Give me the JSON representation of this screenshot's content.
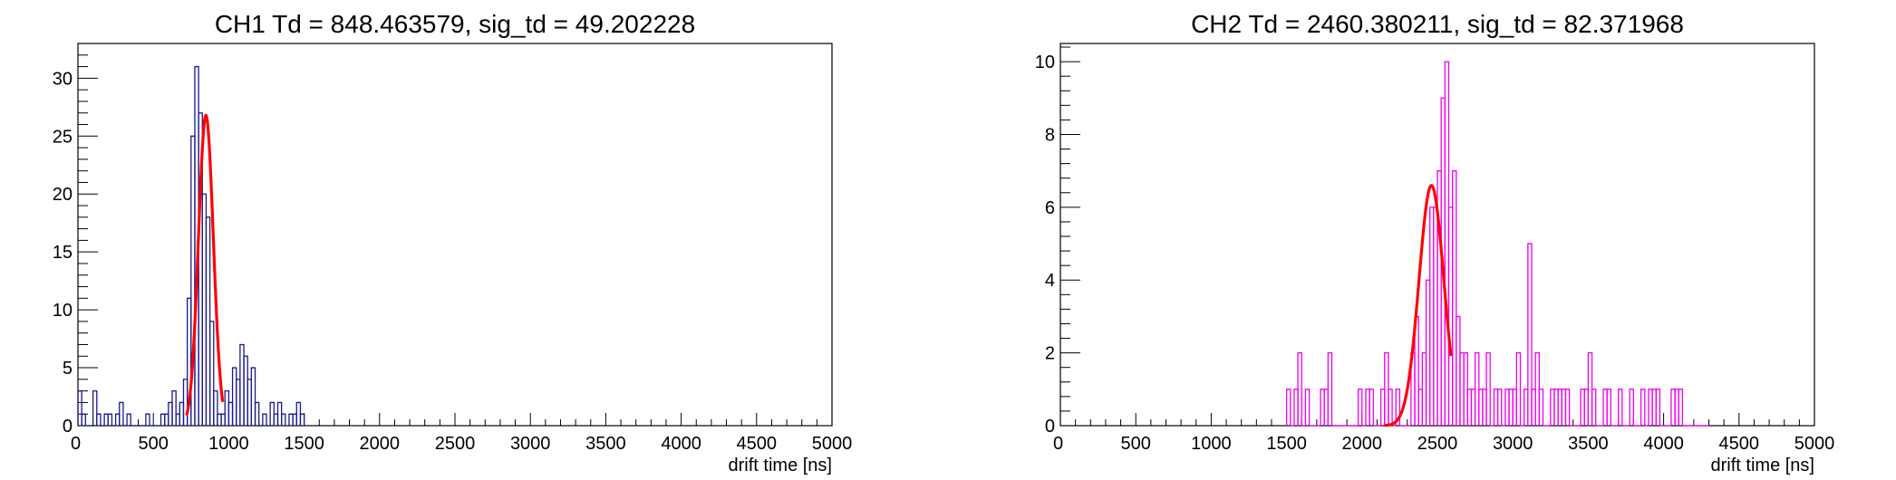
{
  "chart_data": [
    {
      "type": "bar",
      "title": "CH1 Td = 848.463579, sig_td = 49.202228",
      "xlabel": "drift time [ns]",
      "ylabel": "",
      "xlim": [
        0,
        5000
      ],
      "ylim": [
        0,
        33
      ],
      "xticks": [
        0,
        500,
        1000,
        1500,
        2000,
        2500,
        3000,
        3500,
        4000,
        4500,
        5000
      ],
      "yticks": [
        0,
        5,
        10,
        15,
        20,
        25,
        30
      ],
      "grid": false,
      "legend": "none",
      "hist_color": "#1a1a8c",
      "fit_color": "#ff0000",
      "histogram": {
        "bin_width": 25,
        "x_start": 0,
        "counts": [
          3,
          1,
          0,
          0,
          3,
          1,
          0,
          1,
          1,
          0,
          1,
          2,
          0,
          1,
          0,
          0,
          0,
          0,
          1,
          0,
          0,
          0,
          1,
          1,
          2,
          3,
          1,
          2,
          4,
          11,
          25,
          31,
          27,
          20,
          18,
          9,
          3,
          1,
          1,
          3,
          2,
          5,
          4,
          7,
          6,
          4,
          5,
          2,
          0,
          1,
          0,
          2,
          1,
          2,
          1,
          0,
          1,
          1,
          2,
          1
        ]
      },
      "fit": {
        "model": "gaussian",
        "amplitude": 26.8,
        "mean": 848.463579,
        "sigma": 49.202228,
        "x_range": [
          720,
          960
        ]
      }
    },
    {
      "type": "bar",
      "title": "CH2 Td = 2460.380211, sig_td = 82.371968",
      "xlabel": "drift time [ns]",
      "ylabel": "",
      "xlim": [
        0,
        5000
      ],
      "ylim": [
        0,
        10.5
      ],
      "xticks": [
        0,
        500,
        1000,
        1500,
        2000,
        2500,
        3000,
        3500,
        4000,
        4500,
        5000
      ],
      "yticks": [
        0,
        2,
        4,
        6,
        8,
        10
      ],
      "grid": false,
      "legend": "none",
      "hist_color": "#ee00ee",
      "fit_color": "#ff0000",
      "histogram": {
        "bin_width": 25,
        "x_start": 1500,
        "counts": [
          1,
          0,
          1,
          2,
          0,
          1,
          0,
          0,
          0,
          1,
          1,
          2,
          0,
          0,
          0,
          0,
          0,
          0,
          0,
          1,
          0,
          1,
          1,
          0,
          0,
          1,
          2,
          1,
          0,
          1,
          0,
          0,
          0,
          2,
          3,
          1,
          2,
          4,
          6,
          6,
          7,
          9,
          10,
          6,
          7,
          3,
          2,
          2,
          1,
          1,
          2,
          1,
          1,
          2,
          0,
          1,
          1,
          0,
          1,
          1,
          1,
          2,
          0,
          1,
          5,
          1,
          2,
          1,
          0,
          0,
          1,
          1,
          1,
          1,
          1,
          0,
          0,
          0,
          1,
          1,
          2,
          1,
          0,
          0,
          1,
          1,
          0,
          0,
          1,
          0,
          0,
          1,
          0,
          0,
          1,
          0,
          1,
          1,
          1,
          0,
          0,
          0,
          1,
          1,
          1,
          0,
          0,
          0,
          0,
          0,
          0,
          0
        ]
      },
      "fit": {
        "model": "gaussian",
        "amplitude": 6.6,
        "mean": 2460.380211,
        "sigma": 82.371968,
        "x_range": [
          2150,
          2590
        ]
      }
    }
  ]
}
